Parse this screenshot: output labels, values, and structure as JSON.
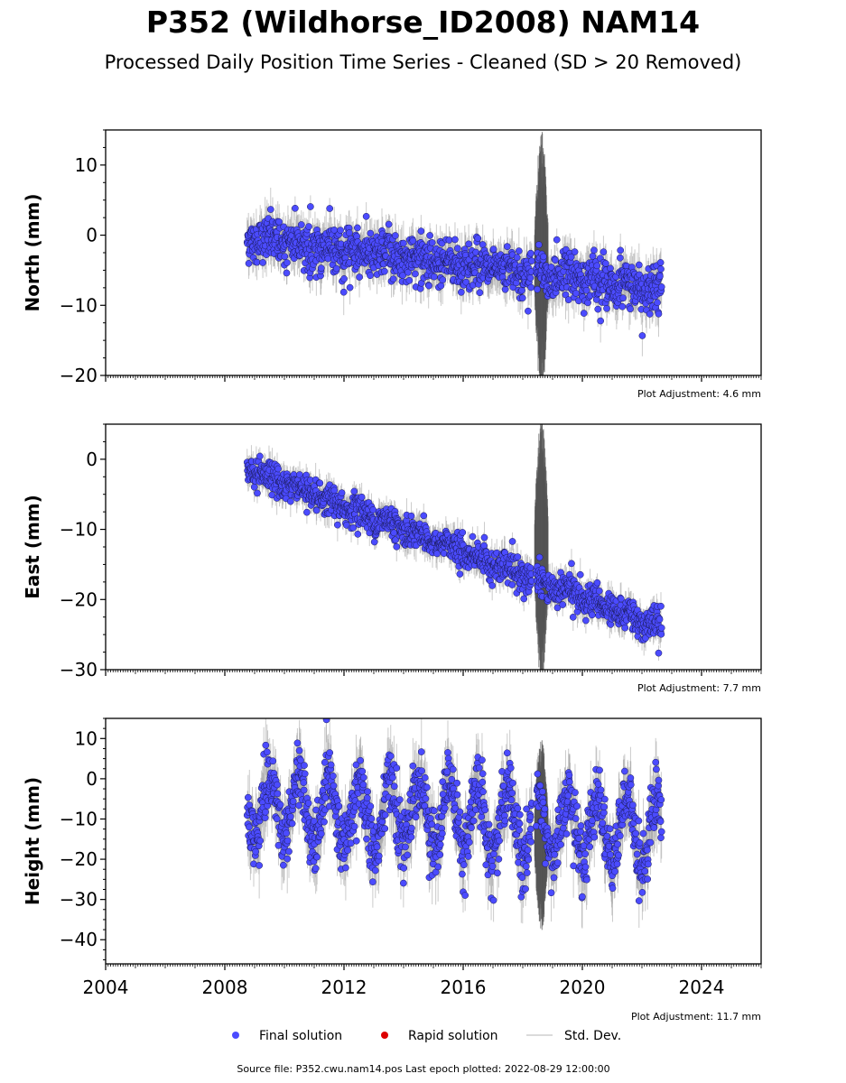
{
  "title": "P352 (Wildhorse_ID2008) NAM14",
  "subtitle": "Processed Daily Position Time Series - Cleaned (SD > 20 Removed)",
  "colors": {
    "final": "#4b4bff",
    "final_edge": "#1a1a55",
    "rapid": "#dd0000",
    "std_dev": "#a0a0a0",
    "std_dev_dark": "#555555"
  },
  "legend": {
    "final": "Final solution",
    "rapid": "Rapid solution",
    "std": "Std. Dev."
  },
  "footer": "Source file: P352.cwu.nam14.pos  Last epoch plotted: 2022-08-29 12:00:00",
  "chart_data": [
    {
      "type": "scatter",
      "ylabel": "North (mm)",
      "adjustment": "Plot Adjustment: 4.6 mm",
      "xlim": [
        2004,
        2026
      ],
      "ylim": [
        -20,
        15
      ],
      "yticks": [
        10,
        0,
        -10,
        -20
      ],
      "ytick_labels": [
        "10",
        "0",
        "−10",
        "−20"
      ],
      "x_start": 2008.75,
      "x_end": 2022.66,
      "trend_start": -0.5,
      "trend_rate": -0.52,
      "seasonal_amp": 0.6,
      "noise": 1.6,
      "gap": [
        2018.3,
        2018.45
      ],
      "offset_after_gap": 0.0,
      "noisy_period": [
        2018.4,
        2018.85
      ],
      "noisy_center": -4,
      "noisy_half_range": 16
    },
    {
      "type": "scatter",
      "ylabel": "East (mm)",
      "adjustment": "Plot Adjustment: 7.7 mm",
      "xlim": [
        2004,
        2026
      ],
      "ylim": [
        -30,
        5
      ],
      "yticks": [
        0,
        -10,
        -20,
        -30
      ],
      "ytick_labels": [
        "0",
        "−10",
        "−20",
        "−30"
      ],
      "x_start": 2008.75,
      "x_end": 2022.66,
      "trend_start": -1.5,
      "trend_rate": -1.62,
      "seasonal_amp": 0.5,
      "noise": 1.1,
      "gap": [
        2018.3,
        2018.45
      ],
      "offset_after_gap": 0.0,
      "noisy_period": [
        2018.4,
        2018.85
      ],
      "noisy_center": -13,
      "noisy_half_range": 16
    },
    {
      "type": "scatter",
      "ylabel": "Height (mm)",
      "adjustment": "Plot Adjustment: 11.7 mm",
      "xlim": [
        2004,
        2026
      ],
      "ylim": [
        -46,
        15
      ],
      "yticks": [
        10,
        0,
        -10,
        -20,
        -30,
        -40
      ],
      "ytick_labels": [
        "10",
        "0",
        "−10",
        "−20",
        "−30",
        "−40"
      ],
      "xticks": [
        2004,
        2008,
        2012,
        2016,
        2020,
        2024
      ],
      "xtick_labels": [
        "2004",
        "2008",
        "2012",
        "2016",
        "2020",
        "2024"
      ],
      "x_start": 2008.75,
      "x_end": 2022.66,
      "trend_start": -7,
      "trend_rate": -0.45,
      "seasonal_amp": 8.5,
      "noise": 4.0,
      "gap": [
        2018.3,
        2018.45
      ],
      "offset_after_gap": 0.0,
      "noisy_period": [
        2018.4,
        2018.85
      ],
      "noisy_center": -14,
      "noisy_half_range": 20
    }
  ]
}
